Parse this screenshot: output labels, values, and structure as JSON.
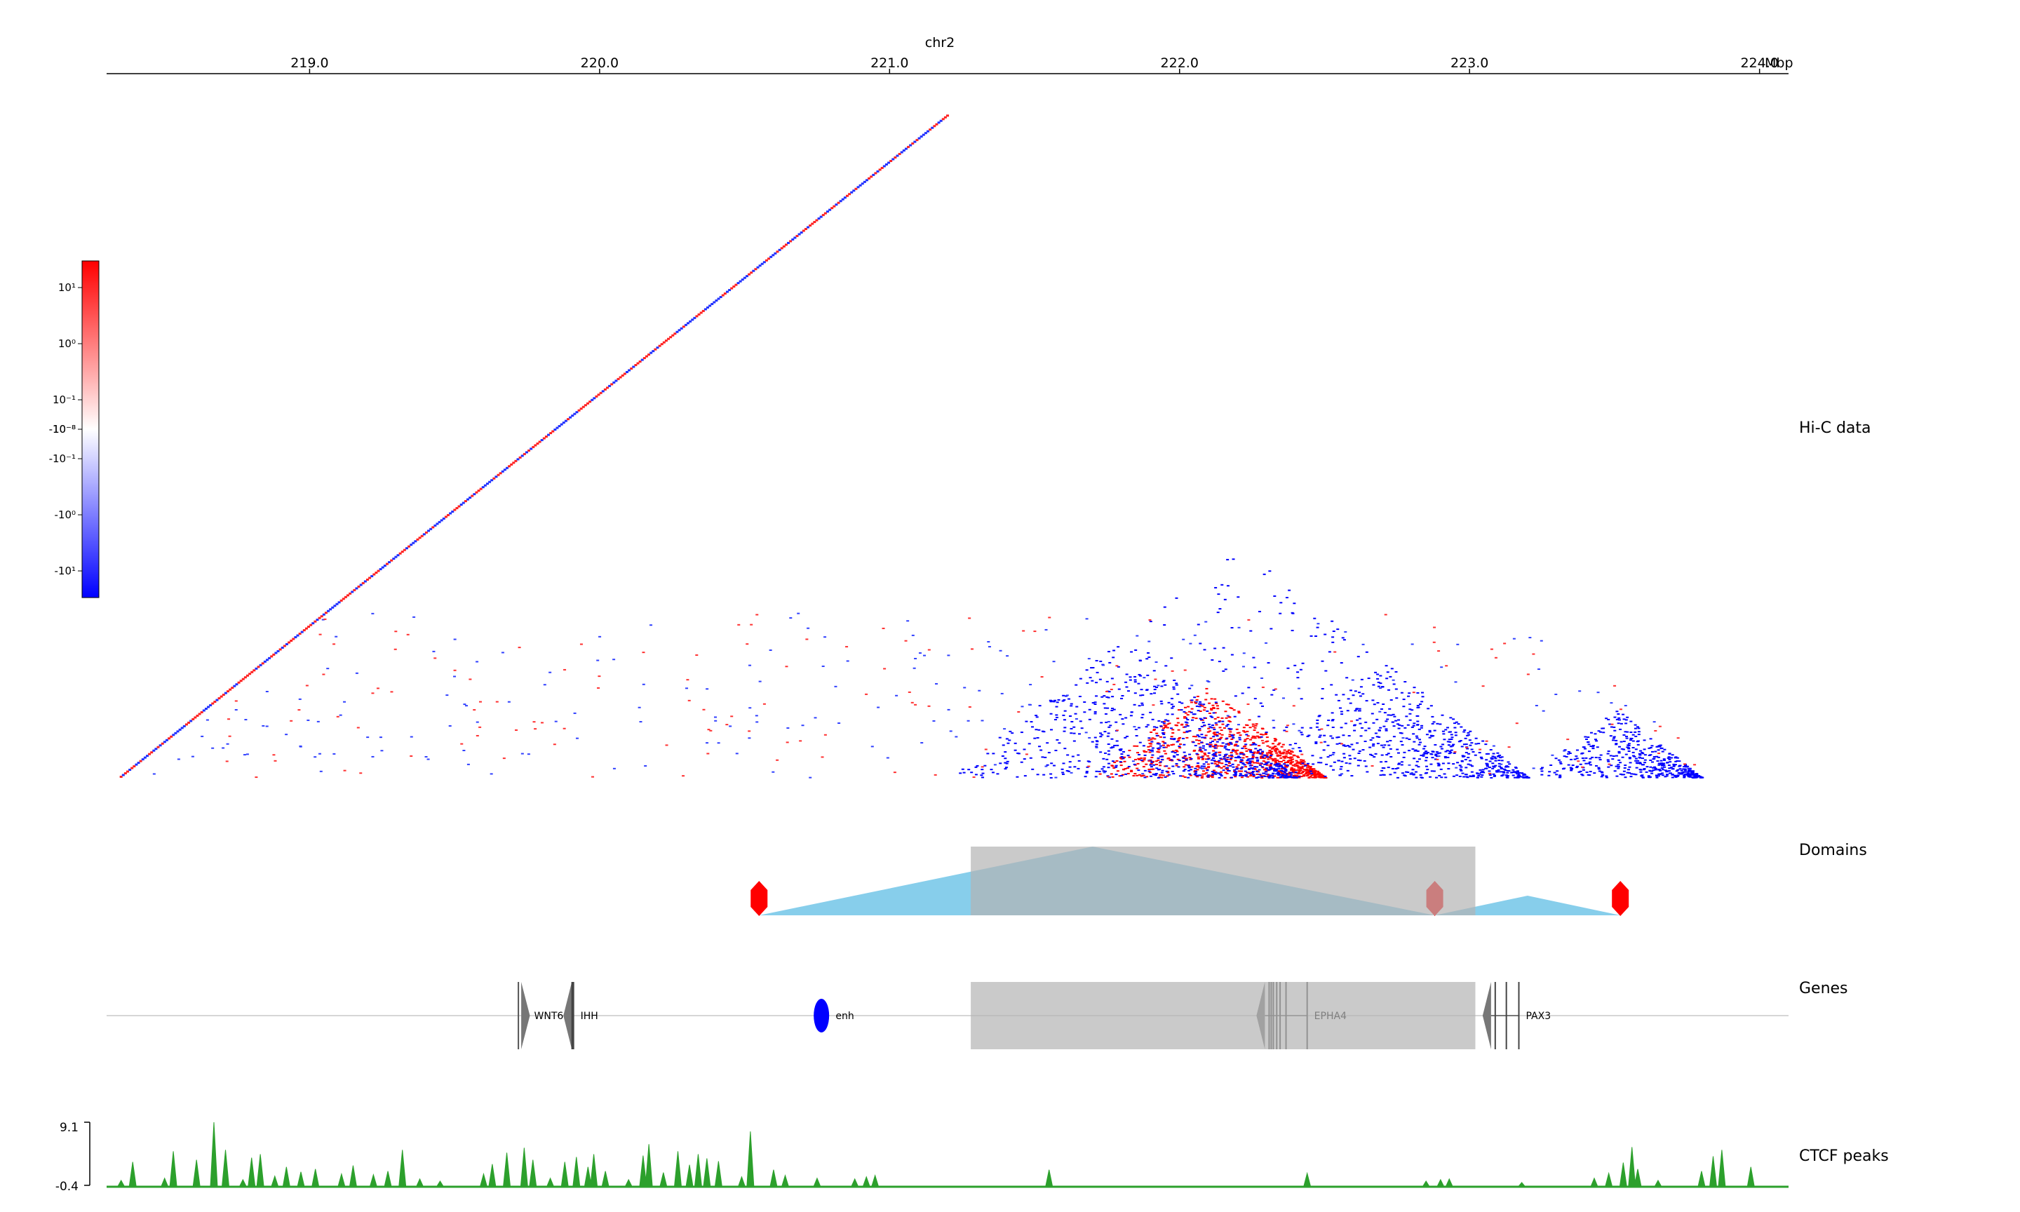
{
  "chart_data": {
    "type": "heatmap",
    "chromosome": "chr2",
    "unit": "Mbp",
    "xlim": [
      218.3,
      224.1
    ],
    "x_ticks": [
      "219.0",
      "220.0",
      "221.0",
      "222.0",
      "223.0",
      "224.0"
    ],
    "x_tick_values": [
      219.0,
      220.0,
      221.0,
      222.0,
      223.0,
      224.0
    ],
    "tracks": [
      "Hi-C data",
      "Domains",
      "Genes",
      "CTCF peaks"
    ],
    "hic": {
      "colormap": [
        "#0000ff",
        "#ffffff",
        "#ff0000"
      ],
      "colorbar_ticks": [
        "10¹",
        "10⁰",
        "10⁻¹",
        "-10⁻⁸",
        "10⁻⁸",
        "-10⁻¹",
        "-10⁰",
        "-10¹"
      ],
      "enriched_blocks": [
        {
          "color": "#ff0000",
          "start": 221.7,
          "end": 222.5,
          "density": 0.9
        },
        {
          "color": "#0000ff",
          "start": 221.2,
          "end": 222.4,
          "density": 0.75
        },
        {
          "color": "#0000ff",
          "start": 221.2,
          "end": 223.2,
          "density": 0.35
        },
        {
          "color": "#0000ff",
          "start": 222.2,
          "end": 223.2,
          "density": 0.5
        },
        {
          "color": "#0000ff",
          "start": 223.2,
          "end": 223.8,
          "density": 0.5
        }
      ]
    },
    "highlight": {
      "start": 221.28,
      "end": 223.02,
      "color": "#b4b4b4"
    },
    "domains": [
      {
        "start": 220.55,
        "end": 222.88,
        "color": "#87ceeb"
      },
      {
        "start": 222.88,
        "end": 223.52,
        "color": "#87ceeb"
      }
    ],
    "boundaries": [
      {
        "position": 220.55,
        "color": "#ff0000"
      },
      {
        "position": 222.88,
        "color": "#ff0000"
      },
      {
        "position": 223.52,
        "color": "#ff0000"
      }
    ],
    "genes": [
      {
        "name": "WNT6",
        "start": 219.72,
        "end": 219.75,
        "strand": "+"
      },
      {
        "name": "IHH",
        "start": 219.88,
        "end": 219.91,
        "strand": "-"
      },
      {
        "name": "enh",
        "start": 220.75,
        "end": 220.78,
        "strand": ".",
        "shape": "ellipse",
        "color": "#0000ff"
      },
      {
        "name": "EPHA4",
        "start": 222.27,
        "end": 222.44,
        "strand": "-"
      },
      {
        "name": "PAX3",
        "start": 223.05,
        "end": 223.17,
        "strand": "-"
      }
    ],
    "ctcf": {
      "ylim": [
        -0.4,
        9.1
      ],
      "y_ticks": [
        "9.1",
        "-0.4"
      ],
      "color": "#2ca02c",
      "peaks": [
        {
          "x": 218.35,
          "y": 0.9
        },
        {
          "x": 218.39,
          "y": 3.5
        },
        {
          "x": 218.5,
          "y": 1.2
        },
        {
          "x": 218.53,
          "y": 5.0
        },
        {
          "x": 218.61,
          "y": 3.8
        },
        {
          "x": 218.67,
          "y": 9.1
        },
        {
          "x": 218.71,
          "y": 5.2
        },
        {
          "x": 218.77,
          "y": 1.0
        },
        {
          "x": 218.8,
          "y": 4.1
        },
        {
          "x": 218.83,
          "y": 4.6
        },
        {
          "x": 218.88,
          "y": 1.5
        },
        {
          "x": 218.92,
          "y": 2.8
        },
        {
          "x": 218.97,
          "y": 2.1
        },
        {
          "x": 219.02,
          "y": 2.5
        },
        {
          "x": 219.11,
          "y": 1.8
        },
        {
          "x": 219.15,
          "y": 3.0
        },
        {
          "x": 219.22,
          "y": 1.7
        },
        {
          "x": 219.27,
          "y": 2.2
        },
        {
          "x": 219.32,
          "y": 5.2
        },
        {
          "x": 219.38,
          "y": 1.1
        },
        {
          "x": 219.45,
          "y": 0.8
        },
        {
          "x": 219.6,
          "y": 1.8
        },
        {
          "x": 219.63,
          "y": 3.2
        },
        {
          "x": 219.68,
          "y": 4.8
        },
        {
          "x": 219.74,
          "y": 5.5
        },
        {
          "x": 219.77,
          "y": 3.8
        },
        {
          "x": 219.83,
          "y": 1.2
        },
        {
          "x": 219.88,
          "y": 3.5
        },
        {
          "x": 219.92,
          "y": 4.2
        },
        {
          "x": 219.96,
          "y": 2.8
        },
        {
          "x": 219.98,
          "y": 4.6
        },
        {
          "x": 220.02,
          "y": 2.2
        },
        {
          "x": 220.1,
          "y": 1.0
        },
        {
          "x": 220.15,
          "y": 4.4
        },
        {
          "x": 220.17,
          "y": 6.0
        },
        {
          "x": 220.22,
          "y": 2.0
        },
        {
          "x": 220.27,
          "y": 5.0
        },
        {
          "x": 220.31,
          "y": 3.1
        },
        {
          "x": 220.34,
          "y": 4.6
        },
        {
          "x": 220.37,
          "y": 4.0
        },
        {
          "x": 220.41,
          "y": 3.6
        },
        {
          "x": 220.49,
          "y": 1.4
        },
        {
          "x": 220.52,
          "y": 7.8
        },
        {
          "x": 220.6,
          "y": 2.4
        },
        {
          "x": 220.64,
          "y": 1.6
        },
        {
          "x": 220.75,
          "y": 1.2
        },
        {
          "x": 220.88,
          "y": 1.1
        },
        {
          "x": 220.92,
          "y": 1.4
        },
        {
          "x": 220.95,
          "y": 1.6
        },
        {
          "x": 221.55,
          "y": 2.4
        },
        {
          "x": 222.44,
          "y": 1.9
        },
        {
          "x": 222.85,
          "y": 0.8
        },
        {
          "x": 222.9,
          "y": 1.0
        },
        {
          "x": 222.93,
          "y": 1.1
        },
        {
          "x": 223.18,
          "y": 0.6
        },
        {
          "x": 223.43,
          "y": 1.2
        },
        {
          "x": 223.48,
          "y": 1.9
        },
        {
          "x": 223.53,
          "y": 3.4
        },
        {
          "x": 223.56,
          "y": 5.6
        },
        {
          "x": 223.58,
          "y": 2.5
        },
        {
          "x": 223.65,
          "y": 0.9
        },
        {
          "x": 223.8,
          "y": 2.2
        },
        {
          "x": 223.84,
          "y": 4.3
        },
        {
          "x": 223.87,
          "y": 5.2
        },
        {
          "x": 223.97,
          "y": 2.8
        }
      ]
    }
  }
}
